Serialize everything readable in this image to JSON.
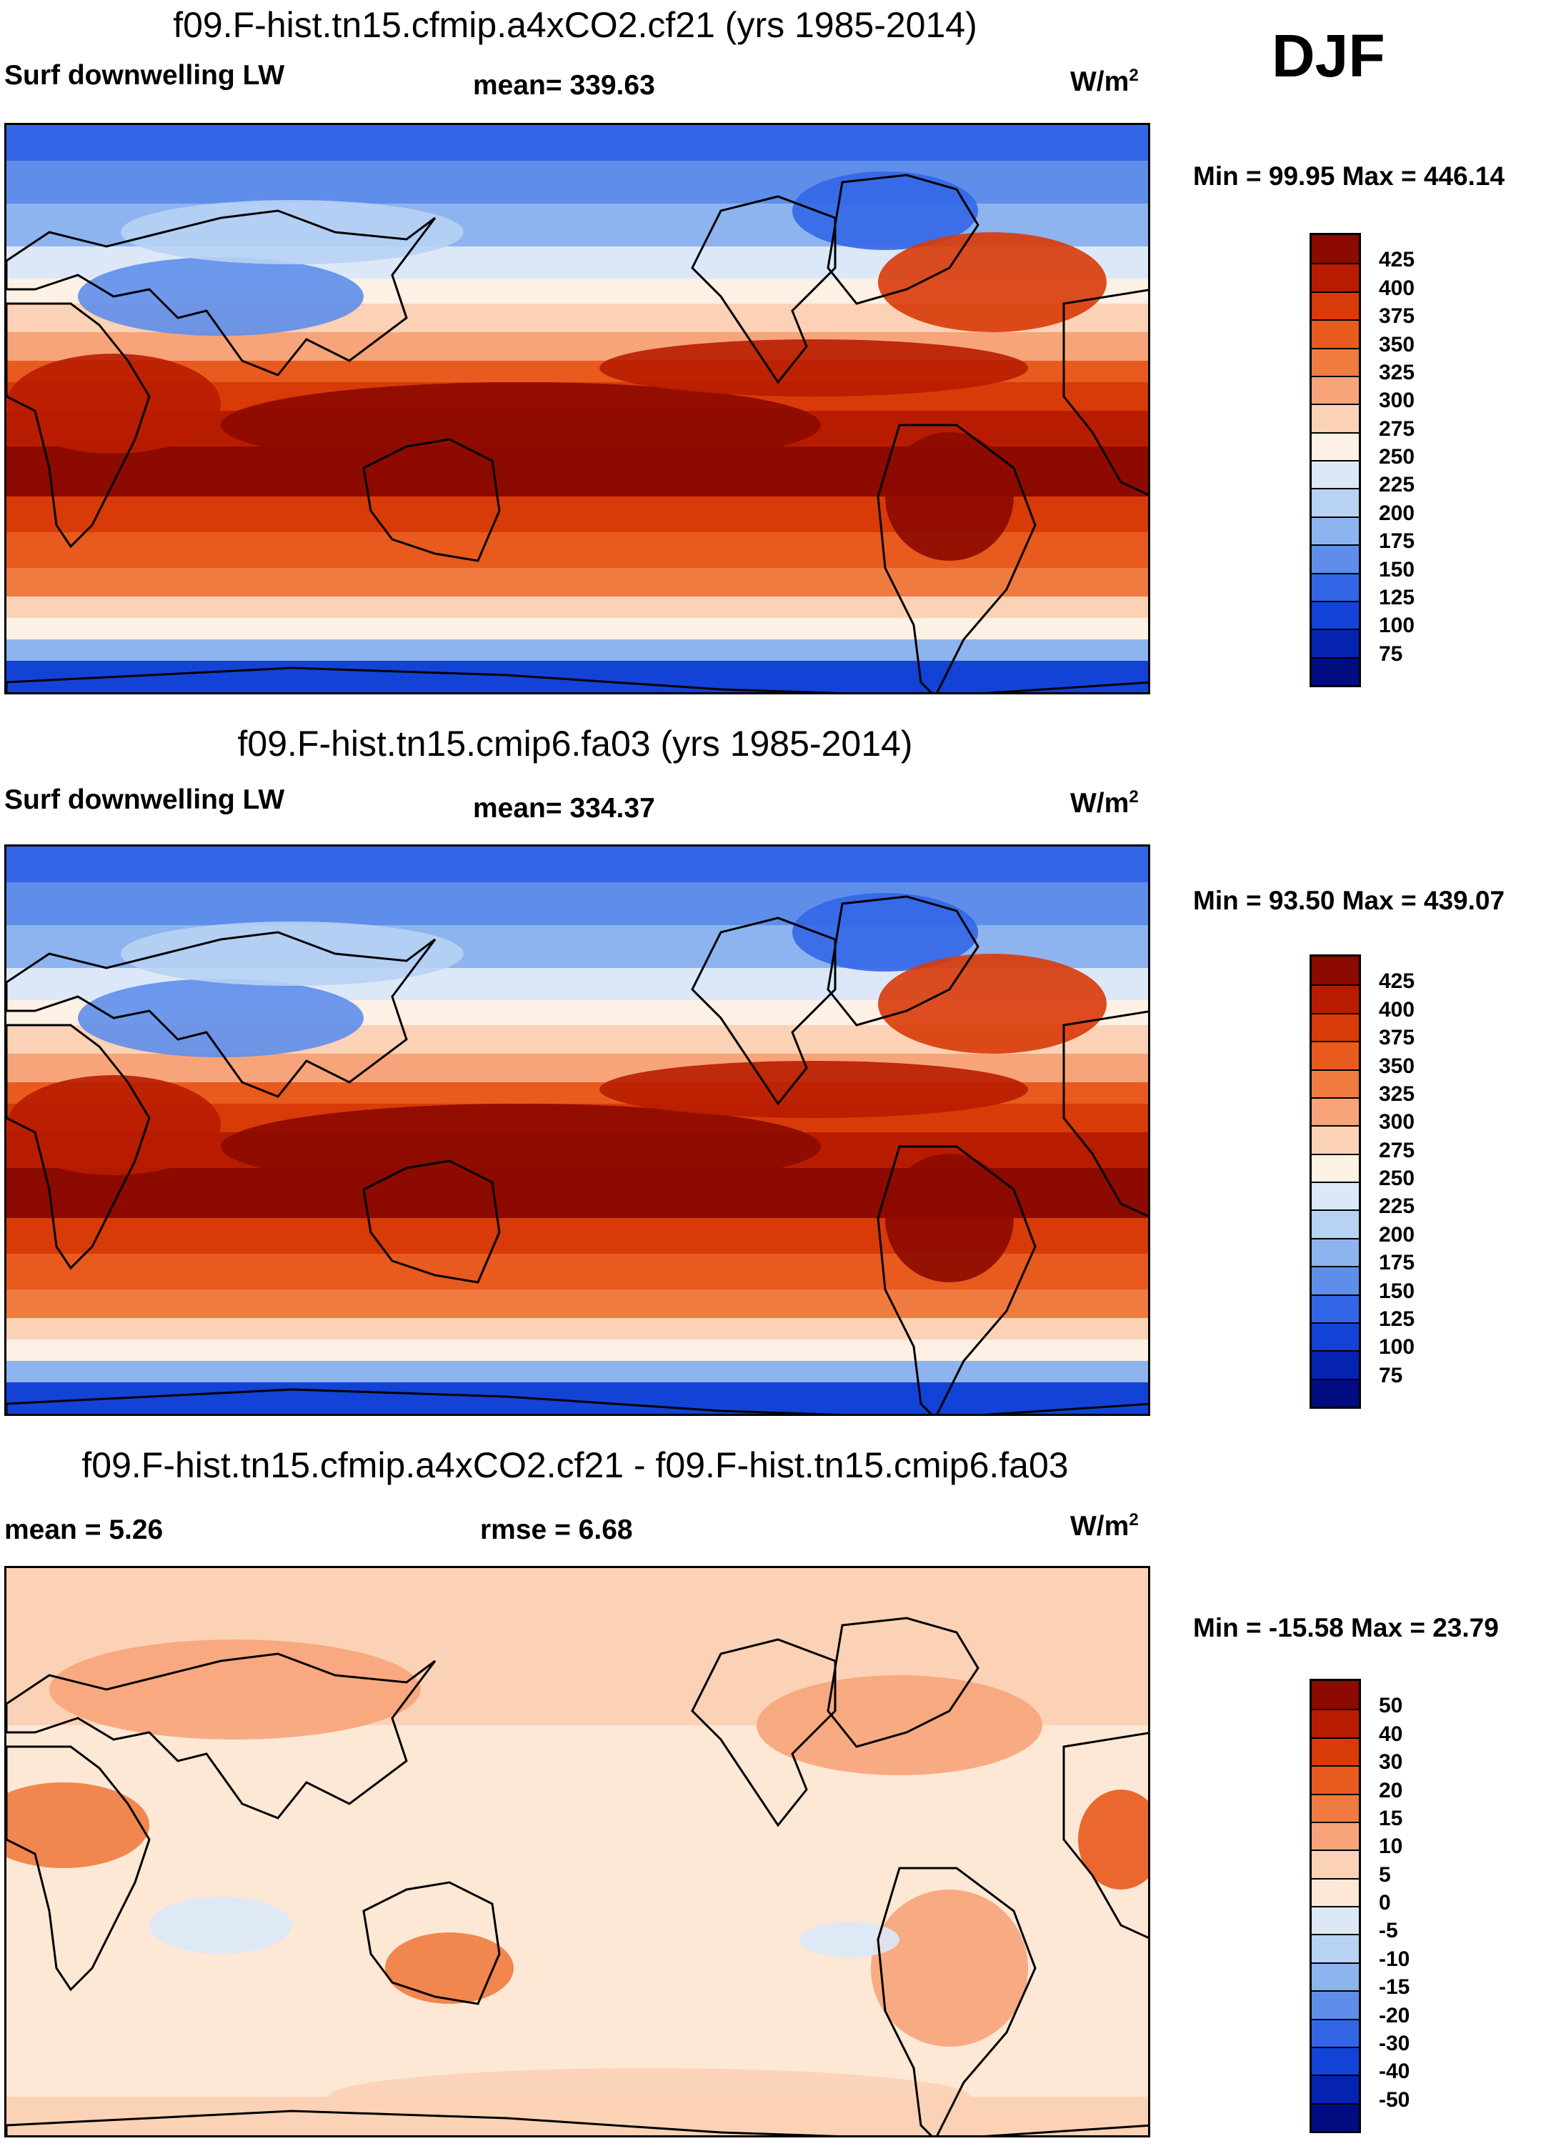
{
  "season": "DJF",
  "panels": [
    {
      "title": "f09.F-hist.tn15.cfmip.a4xCO2.cf21 (yrs 1985-2014)",
      "left_label": "Surf downwelling LW",
      "center_label": "mean= 339.63",
      "units": "W/m",
      "units_sup": "2",
      "minmax": "Min =  99.95 Max = 446.14",
      "kind": "abs"
    },
    {
      "title": "f09.F-hist.tn15.cmip6.fa03 (yrs 1985-2014)",
      "left_label": "Surf downwelling LW",
      "center_label": "mean= 334.37",
      "units": "W/m",
      "units_sup": "2",
      "minmax": "Min =  93.50 Max = 439.07",
      "kind": "abs"
    },
    {
      "title": "f09.F-hist.tn15.cfmip.a4xCO2.cf21 - f09.F-hist.tn15.cmip6.fa03",
      "left_label": "mean =   5.26",
      "center_label": "rmse =   6.68",
      "units": "W/m",
      "units_sup": "2",
      "minmax": "Min = -15.58 Max =  23.79",
      "kind": "diff"
    }
  ],
  "colorbar_abs": {
    "levels": [
      "425",
      "400",
      "375",
      "350",
      "325",
      "300",
      "275",
      "250",
      "225",
      "200",
      "175",
      "150",
      "125",
      "100",
      "75"
    ],
    "colors": [
      "#8c0a00",
      "#b81c00",
      "#d83a08",
      "#e85a1e",
      "#f07b40",
      "#f7a47a",
      "#fcd2b6",
      "#fdf0e4",
      "#dce8f8",
      "#b8d2f4",
      "#8db4ee",
      "#5e8eea",
      "#3366e6",
      "#1243d6",
      "#0423ae",
      "#000c80"
    ]
  },
  "colorbar_diff": {
    "levels": [
      "50",
      "40",
      "30",
      "20",
      "15",
      "10",
      "5",
      "0",
      "-5",
      "-10",
      "-15",
      "-20",
      "-30",
      "-40",
      "-50"
    ],
    "colors": [
      "#8c0a00",
      "#b81c00",
      "#d83a08",
      "#e85a1e",
      "#f07b40",
      "#f7a47a",
      "#fcd2b6",
      "#fde8d6",
      "#dce8f8",
      "#b8d2f4",
      "#8db4ee",
      "#5e8eea",
      "#3366e6",
      "#1243d6",
      "#0423ae",
      "#000c80"
    ]
  },
  "chart_data": [
    {
      "type": "heatmap",
      "title": "f09.F-hist.tn15.cfmip.a4xCO2.cf21 (yrs 1985-2014)",
      "variable": "Surf downwelling LW",
      "units": "W/m2",
      "season": "DJF",
      "mean": 339.63,
      "min": 99.95,
      "max": 446.14,
      "contour_levels": [
        75,
        100,
        125,
        150,
        175,
        200,
        225,
        250,
        275,
        300,
        325,
        350,
        375,
        400,
        425
      ]
    },
    {
      "type": "heatmap",
      "title": "f09.F-hist.tn15.cmip6.fa03 (yrs 1985-2014)",
      "variable": "Surf downwelling LW",
      "units": "W/m2",
      "season": "DJF",
      "mean": 334.37,
      "min": 93.5,
      "max": 439.07,
      "contour_levels": [
        75,
        100,
        125,
        150,
        175,
        200,
        225,
        250,
        275,
        300,
        325,
        350,
        375,
        400,
        425
      ]
    },
    {
      "type": "heatmap",
      "title": "f09.F-hist.tn15.cfmip.a4xCO2.cf21 - f09.F-hist.tn15.cmip6.fa03",
      "variable": "difference",
      "units": "W/m2",
      "season": "DJF",
      "mean": 5.26,
      "rmse": 6.68,
      "min": -15.58,
      "max": 23.79,
      "contour_levels": [
        -50,
        -40,
        -30,
        -20,
        -15,
        -10,
        -5,
        0,
        5,
        10,
        15,
        20,
        30,
        40,
        50
      ]
    }
  ]
}
